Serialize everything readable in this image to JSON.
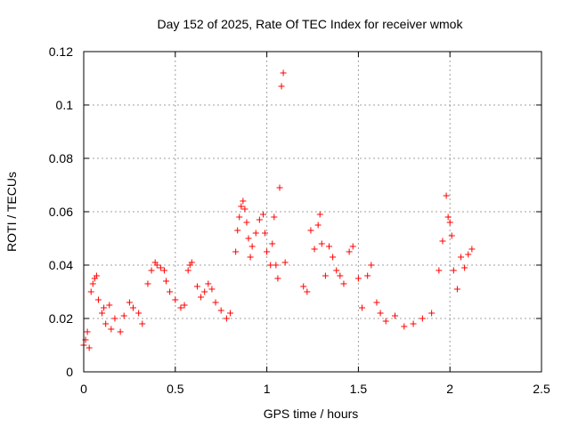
{
  "chart_data": {
    "type": "scatter",
    "title": "Day 152 of 2025, Rate Of TEC Index for receiver wmok",
    "xlabel": "GPS time / hours",
    "ylabel": "ROTI / TECUs",
    "xlim": [
      0,
      2.5
    ],
    "ylim": [
      0,
      0.12
    ],
    "x_ticks": [
      "0",
      "0.5",
      "1",
      "1.5",
      "2",
      "2.5"
    ],
    "y_ticks": [
      "0",
      "0.02",
      "0.04",
      "0.06",
      "0.08",
      "0.1",
      "0.12"
    ],
    "grid": true,
    "marker": "plus",
    "colors": {
      "points": "#ff0000",
      "grid": "#a0a0a0",
      "axis": "#000000"
    },
    "series": [
      {
        "points": [
          [
            0.0,
            0.01
          ],
          [
            0.01,
            0.012
          ],
          [
            0.02,
            0.015
          ],
          [
            0.03,
            0.009
          ],
          [
            0.04,
            0.03
          ],
          [
            0.05,
            0.033
          ],
          [
            0.06,
            0.035
          ],
          [
            0.07,
            0.036
          ],
          [
            0.08,
            0.027
          ],
          [
            0.1,
            0.022
          ],
          [
            0.11,
            0.024
          ],
          [
            0.12,
            0.018
          ],
          [
            0.14,
            0.025
          ],
          [
            0.15,
            0.016
          ],
          [
            0.17,
            0.02
          ],
          [
            0.2,
            0.015
          ],
          [
            0.22,
            0.021
          ],
          [
            0.25,
            0.026
          ],
          [
            0.27,
            0.024
          ],
          [
            0.3,
            0.022
          ],
          [
            0.32,
            0.018
          ],
          [
            0.35,
            0.033
          ],
          [
            0.37,
            0.038
          ],
          [
            0.39,
            0.041
          ],
          [
            0.4,
            0.04
          ],
          [
            0.42,
            0.039
          ],
          [
            0.44,
            0.038
          ],
          [
            0.45,
            0.034
          ],
          [
            0.47,
            0.03
          ],
          [
            0.5,
            0.027
          ],
          [
            0.53,
            0.024
          ],
          [
            0.55,
            0.025
          ],
          [
            0.57,
            0.038
          ],
          [
            0.58,
            0.04
          ],
          [
            0.59,
            0.041
          ],
          [
            0.62,
            0.032
          ],
          [
            0.64,
            0.028
          ],
          [
            0.66,
            0.03
          ],
          [
            0.68,
            0.033
          ],
          [
            0.7,
            0.031
          ],
          [
            0.72,
            0.026
          ],
          [
            0.75,
            0.023
          ],
          [
            0.78,
            0.02
          ],
          [
            0.8,
            0.022
          ],
          [
            0.83,
            0.045
          ],
          [
            0.84,
            0.053
          ],
          [
            0.85,
            0.058
          ],
          [
            0.86,
            0.062
          ],
          [
            0.87,
            0.064
          ],
          [
            0.88,
            0.061
          ],
          [
            0.89,
            0.056
          ],
          [
            0.9,
            0.05
          ],
          [
            0.91,
            0.043
          ],
          [
            0.92,
            0.047
          ],
          [
            0.94,
            0.052
          ],
          [
            0.96,
            0.057
          ],
          [
            0.98,
            0.059
          ],
          [
            0.99,
            0.052
          ],
          [
            1.0,
            0.045
          ],
          [
            1.02,
            0.04
          ],
          [
            1.03,
            0.048
          ],
          [
            1.04,
            0.058
          ],
          [
            1.05,
            0.04
          ],
          [
            1.06,
            0.035
          ],
          [
            1.07,
            0.069
          ],
          [
            1.08,
            0.107
          ],
          [
            1.09,
            0.112
          ],
          [
            1.1,
            0.041
          ],
          [
            1.2,
            0.032
          ],
          [
            1.22,
            0.03
          ],
          [
            1.24,
            0.053
          ],
          [
            1.26,
            0.046
          ],
          [
            1.28,
            0.055
          ],
          [
            1.29,
            0.059
          ],
          [
            1.3,
            0.048
          ],
          [
            1.32,
            0.036
          ],
          [
            1.34,
            0.047
          ],
          [
            1.36,
            0.043
          ],
          [
            1.38,
            0.038
          ],
          [
            1.4,
            0.036
          ],
          [
            1.42,
            0.033
          ],
          [
            1.45,
            0.045
          ],
          [
            1.47,
            0.047
          ],
          [
            1.5,
            0.035
          ],
          [
            1.52,
            0.024
          ],
          [
            1.55,
            0.036
          ],
          [
            1.57,
            0.04
          ],
          [
            1.6,
            0.026
          ],
          [
            1.62,
            0.022
          ],
          [
            1.65,
            0.019
          ],
          [
            1.7,
            0.021
          ],
          [
            1.75,
            0.017
          ],
          [
            1.8,
            0.018
          ],
          [
            1.85,
            0.02
          ],
          [
            1.9,
            0.022
          ],
          [
            1.94,
            0.038
          ],
          [
            1.96,
            0.049
          ],
          [
            1.98,
            0.066
          ],
          [
            1.99,
            0.058
          ],
          [
            2.0,
            0.056
          ],
          [
            2.01,
            0.051
          ],
          [
            2.02,
            0.038
          ],
          [
            2.04,
            0.031
          ],
          [
            2.06,
            0.043
          ],
          [
            2.08,
            0.039
          ],
          [
            2.1,
            0.044
          ],
          [
            2.12,
            0.046
          ]
        ]
      }
    ]
  }
}
